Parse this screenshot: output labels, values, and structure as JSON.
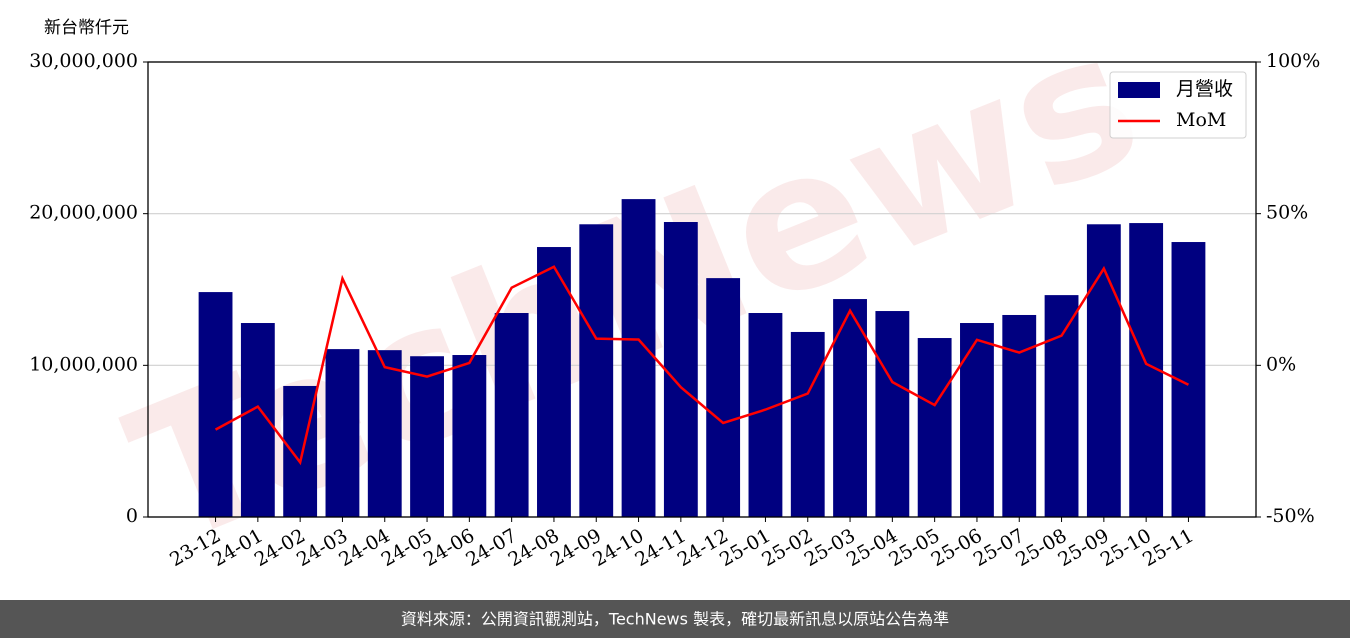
{
  "chart_data": {
    "type": "bar",
    "y_label": "新台幣仟元",
    "watermark": "TechNews",
    "categories": [
      "23-12",
      "24-01",
      "24-02",
      "24-03",
      "24-04",
      "24-05",
      "24-06",
      "24-07",
      "24-08",
      "24-09",
      "24-10",
      "24-11",
      "24-12",
      "25-01",
      "25-02",
      "25-03",
      "25-04",
      "25-05",
      "25-06",
      "25-07",
      "25-08",
      "25-09",
      "25-10",
      "25-11"
    ],
    "series": [
      {
        "name": "月營收",
        "type": "bar",
        "color": "#000080",
        "values": [
          14830000,
          12790000,
          8640000,
          11070000,
          11000000,
          10600000,
          10680000,
          13450000,
          17800000,
          19300000,
          20960000,
          19450000,
          15750000,
          13450000,
          12200000,
          14370000,
          13580000,
          11800000,
          12790000,
          13320000,
          14630000,
          19300000,
          19380000,
          18130000
        ]
      },
      {
        "name": "MoM",
        "type": "line",
        "axis": "y2",
        "color": "#ff0000",
        "values": [
          -21.2,
          -13.6,
          -32,
          28.6,
          -0.6,
          -3.7,
          0.8,
          25.6,
          32.5,
          8.8,
          8.5,
          -7.2,
          -19,
          -14.6,
          -9.3,
          18,
          -5.5,
          -13.1,
          8.4,
          4.2,
          9.8,
          31.9,
          0.5,
          -6.4
        ]
      }
    ],
    "ylim": [
      0,
      30000000
    ],
    "yticks": [
      0,
      {
        "value": 10000000,
        "label": "10,000,000"
      },
      {
        "value": 20000000,
        "label": "20,000,000"
      },
      {
        "value": 30000000,
        "label": "30,000,000"
      }
    ],
    "y2lim": [
      -50,
      100
    ],
    "y2ticks": [
      {
        "value": -50,
        "label": "-50%"
      },
      {
        "value": 0,
        "label": "0%"
      },
      {
        "value": 50,
        "label": "50%"
      },
      {
        "value": 100,
        "label": "100%"
      }
    ],
    "grid": true,
    "legend": "upper right"
  },
  "footer": "資料來源：公開資訊觀測站，TechNews 製表，確切最新訊息以原站公告為準"
}
